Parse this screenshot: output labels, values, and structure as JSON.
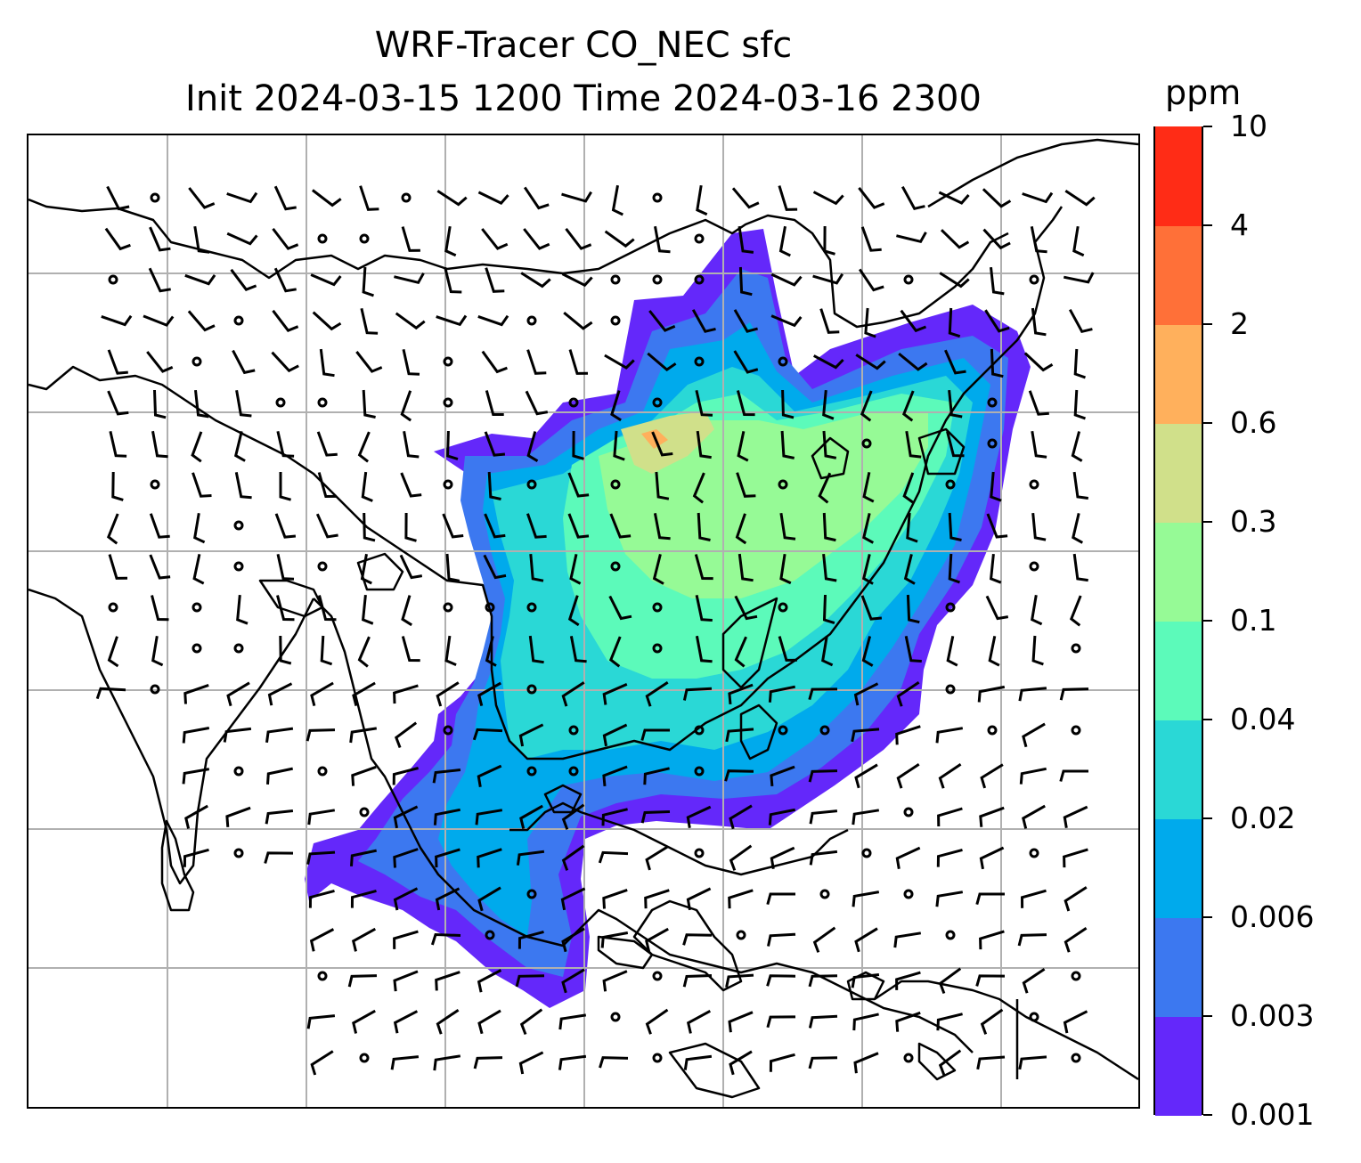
{
  "title": {
    "line1": "WRF-Tracer CO_NEC sfc",
    "line2": "Init 2024-03-15 1200 Time 2024-03-16 2300"
  },
  "colorbar": {
    "unit": "ppm",
    "ticks": [
      "0.001",
      "0.003",
      "0.006",
      "0.02",
      "0.04",
      "0.1",
      "0.3",
      "0.6",
      "2",
      "4",
      "10"
    ],
    "colors": [
      "#6428fa",
      "#3c78f0",
      "#00aaec",
      "#2ad8d6",
      "#5cfaba",
      "#96fa96",
      "#d0e08a",
      "#ffb05c",
      "#ff7038",
      "#ff2c16"
    ]
  },
  "map": {
    "gridline_color": "#b0b0b0",
    "coastline_color": "#000000",
    "tracer_region": "CO_NEC",
    "concentration_bins_shown": [
      "0.001-0.003",
      "0.003-0.006",
      "0.006-0.02",
      "0.02-0.04",
      "0.04-0.1",
      "0.1-0.3",
      "0.3-0.6",
      "0.6-2"
    ]
  }
}
